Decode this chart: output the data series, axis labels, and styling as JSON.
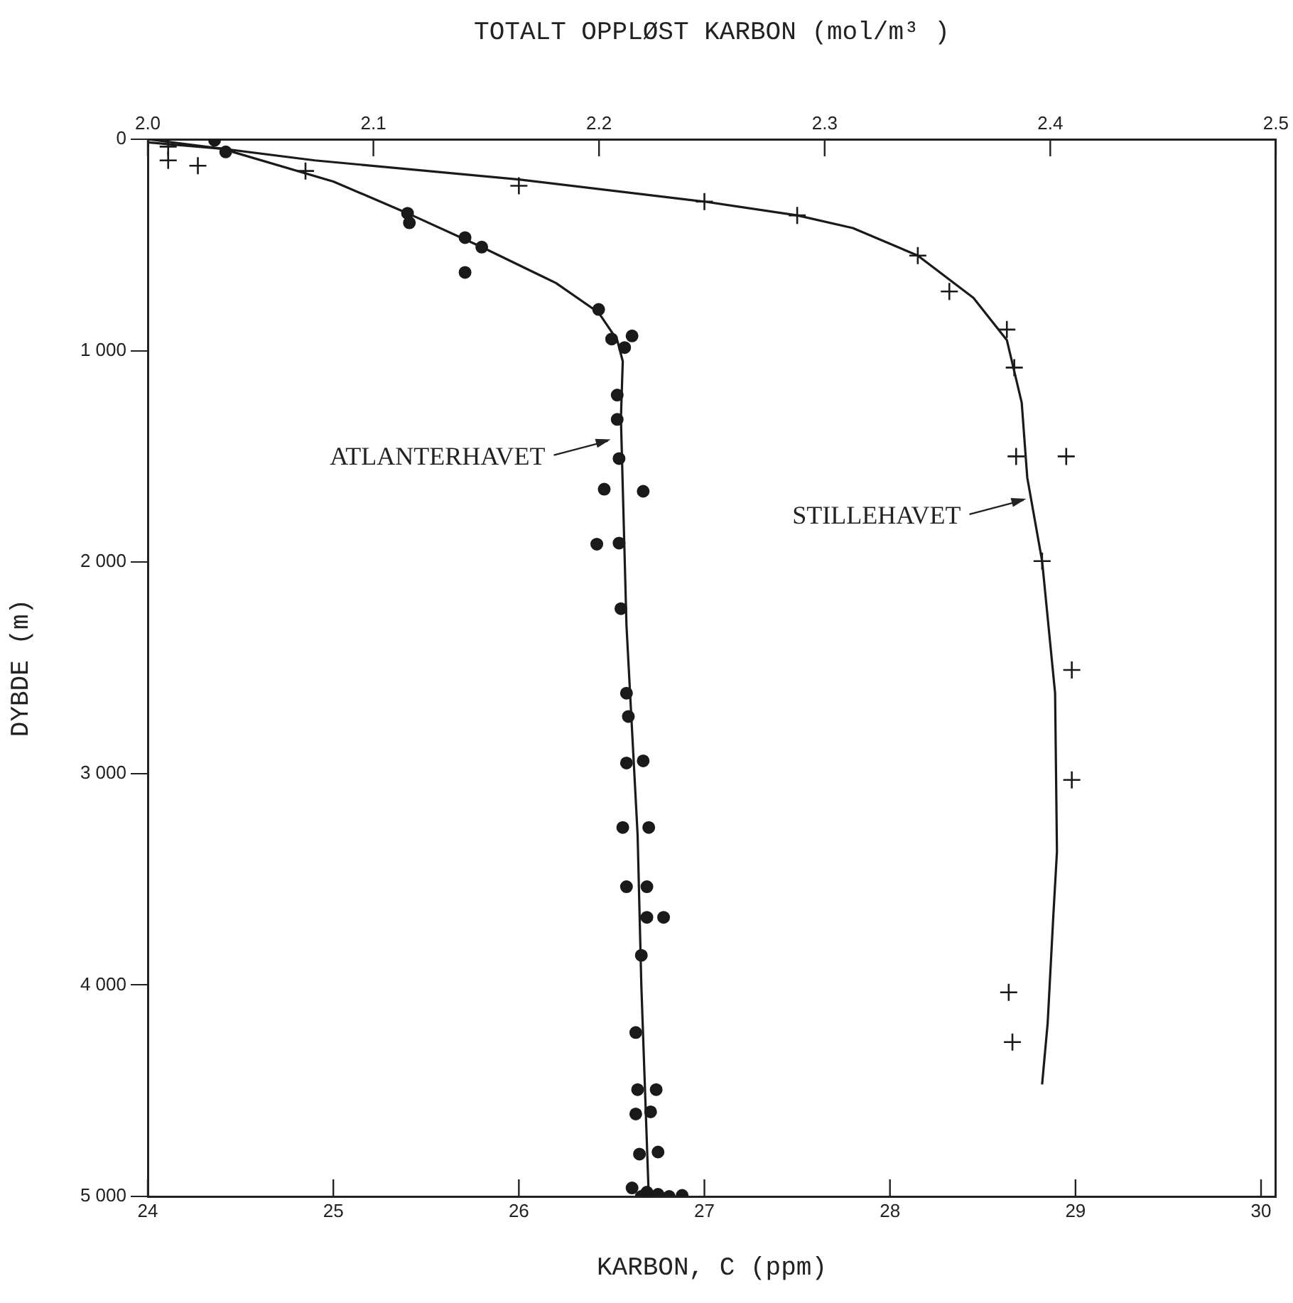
{
  "chart_data": {
    "type": "scatter",
    "x2label": "TOTALT OPPLØST KARBON (mol/m³ )",
    "xlabel": "KARBON, C (ppm)",
    "ylabel": "DYBDE (m)",
    "xlim": [
      24,
      30.08
    ],
    "xticks": [
      24,
      25,
      26,
      27,
      28,
      29,
      30
    ],
    "x2lim": [
      2.0,
      2.5
    ],
    "x2ticks": [
      {
        "value": 2.0,
        "label": "2.0"
      },
      {
        "value": 2.1,
        "label": "2.1"
      },
      {
        "value": 2.2,
        "label": "2.2"
      },
      {
        "value": 2.3,
        "label": "2.3"
      },
      {
        "value": 2.4,
        "label": "2.4"
      },
      {
        "value": 2.5,
        "label": "2.5"
      }
    ],
    "ylim": [
      5000,
      0
    ],
    "yticks": [
      0,
      {
        "value": 1000,
        "label": "1 000"
      },
      {
        "value": 2000,
        "label": "2 000"
      },
      {
        "value": 3000,
        "label": "3 000"
      },
      {
        "value": 4000,
        "label": "4 000"
      },
      {
        "value": 5000,
        "label": "5 000"
      }
    ],
    "grid": false,
    "series": [
      {
        "marker": "circle",
        "color": "#1a1a1a",
        "x": [
          24.36,
          24.42,
          25.4,
          25.41,
          25.71,
          25.8,
          25.71,
          26.43,
          26.5,
          26.57,
          26.61,
          26.53,
          26.53,
          26.54,
          26.46,
          26.67,
          26.42,
          26.54,
          26.55,
          26.58,
          26.59,
          26.58,
          26.67,
          26.56,
          26.7,
          26.58,
          26.69,
          26.69,
          26.78,
          26.66,
          26.63,
          26.64,
          26.74,
          26.63,
          26.71,
          26.65,
          26.75,
          26.61,
          26.69,
          26.66,
          26.75,
          26.81,
          26.88
        ],
        "values": [
          5,
          60,
          350,
          395,
          465,
          510,
          630,
          805,
          945,
          985,
          930,
          1210,
          1325,
          1510,
          1655,
          1665,
          1915,
          1910,
          2220,
          2620,
          2730,
          2950,
          2940,
          3255,
          3255,
          3535,
          3535,
          3680,
          3680,
          3860,
          4225,
          4495,
          4495,
          4610,
          4600,
          4800,
          4790,
          4960,
          4980,
          5000,
          4990,
          5000,
          4995
        ]
      },
      {
        "marker": "cross",
        "color": "#1a1a1a",
        "x": [
          24.11,
          24.11,
          24.27,
          24.85,
          26.0,
          27.0,
          27.5,
          28.15,
          28.32,
          28.63,
          28.67,
          28.68,
          28.95,
          28.82,
          28.98,
          28.98,
          28.64,
          28.66
        ],
        "values": [
          35,
          100,
          125,
          150,
          220,
          295,
          360,
          550,
          720,
          900,
          1080,
          1500,
          1500,
          1995,
          2510,
          3030,
          4035,
          4270
        ]
      },
      {
        "type": "line",
        "marker": "none",
        "line_style": "solid",
        "color": "#1a1a1a",
        "x": [
          24.0,
          24.4,
          25.0,
          25.4,
          25.8,
          26.2,
          26.43,
          26.53,
          26.56,
          26.55,
          26.58,
          26.64,
          26.66,
          26.7
        ],
        "values": [
          15,
          45,
          200,
          350,
          510,
          680,
          820,
          950,
          1050,
          1320,
          2300,
          3290,
          4000,
          5000
        ]
      },
      {
        "type": "line",
        "marker": "none",
        "line_style": "solid",
        "color": "#1a1a1a",
        "x": [
          24.0,
          24.9,
          26.0,
          27.0,
          27.5,
          27.8,
          28.15,
          28.45,
          28.63,
          28.71,
          28.74,
          28.82,
          28.89,
          28.9,
          28.88,
          28.85,
          28.82
        ],
        "values": [
          0,
          100,
          190,
          295,
          360,
          420,
          550,
          750,
          950,
          1245,
          1600,
          1995,
          2620,
          3370,
          3680,
          4180,
          4470
        ]
      }
    ],
    "annotations": [
      {
        "text": "ATLANTERHAVET",
        "x": 26.51,
        "y": 1420
      },
      {
        "text": "STILLEHAVET",
        "x": 28.75,
        "y": 1700
      }
    ]
  }
}
